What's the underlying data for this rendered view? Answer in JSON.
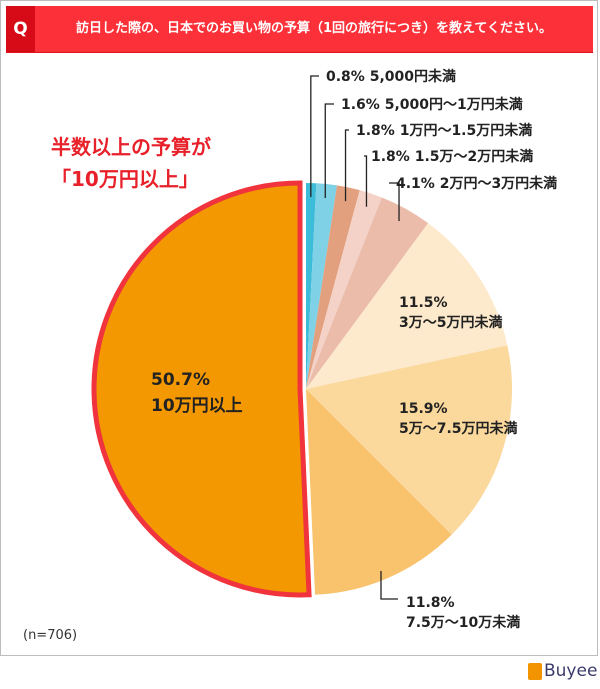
{
  "header": {
    "q_label": "Q",
    "question": "訪日した際の、日本でのお買い物の予算（1回の旅行につき）を教えてください。"
  },
  "callout": {
    "line1": "半数以上の予算が",
    "line2": "「10万円以上」"
  },
  "sample": "(n=706)",
  "logo": "Buyee",
  "chart_data": {
    "type": "pie",
    "start": "top, clockwise",
    "highlight": "10万円以上",
    "highlight_border_color": "#f0333c",
    "slices": [
      {
        "label": "5,000円未満",
        "value": 0.8,
        "pct": "0.8%",
        "color": "#3cbcd9"
      },
      {
        "label": "5,000円～1万円未満",
        "value": 1.6,
        "pct": "1.6%",
        "color": "#7fd1e6"
      },
      {
        "label": "1万円～1.5万円未満",
        "value": 1.8,
        "pct": "1.8%",
        "color": "#e3a07e"
      },
      {
        "label": "1.5万～2万円未満",
        "value": 1.8,
        "pct": "1.8%",
        "color": "#f4d2c7"
      },
      {
        "label": "2万円～3万円未満",
        "value": 4.1,
        "pct": "4.1%",
        "color": "#ebbcaa"
      },
      {
        "label": "3万～5万円未満",
        "value": 11.5,
        "pct": "11.5%",
        "color": "#fde9cb"
      },
      {
        "label": "5万～7.5万円未満",
        "value": 15.9,
        "pct": "15.9%",
        "color": "#fbd89c"
      },
      {
        "label": "7.5万～10万未満",
        "value": 11.8,
        "pct": "11.8%",
        "color": "#f8c36c"
      },
      {
        "label": "10万円以上",
        "value": 50.7,
        "pct": "50.7%",
        "color": "#f39800"
      }
    ]
  }
}
